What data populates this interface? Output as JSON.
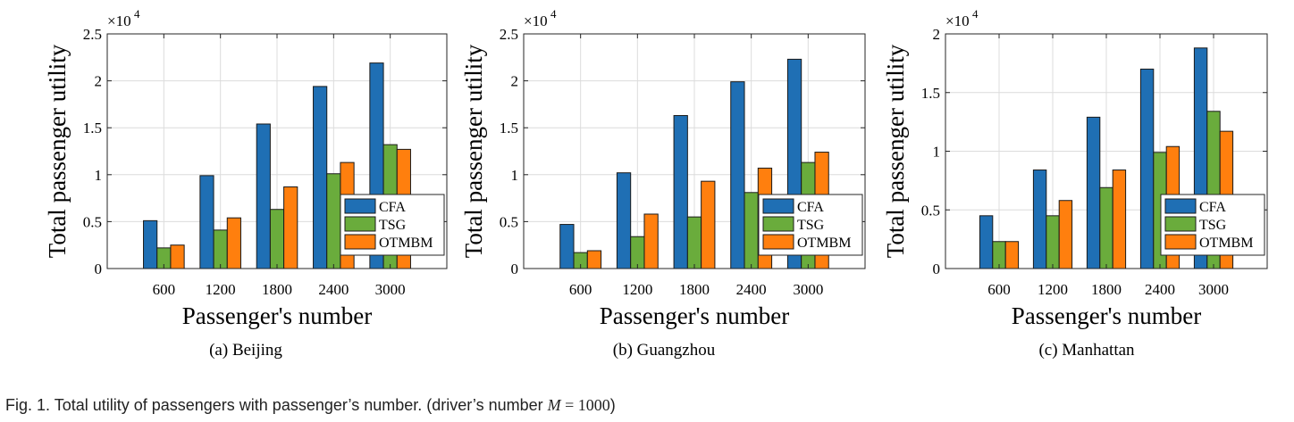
{
  "chart_data": [
    {
      "type": "bar",
      "caption": "(a)  Beijing",
      "categories": [
        "600",
        "1200",
        "1800",
        "2400",
        "3000"
      ],
      "series": [
        {
          "name": "CFA",
          "color": "#1f6fb4",
          "values": [
            5100,
            9900,
            15400,
            19400,
            21900
          ]
        },
        {
          "name": "TSG",
          "color": "#6aac3c",
          "values": [
            2200,
            4100,
            6300,
            10100,
            13200
          ]
        },
        {
          "name": "OTMBM",
          "color": "#ff7f0e",
          "values": [
            2500,
            5400,
            8700,
            11300,
            12700
          ]
        }
      ],
      "ylim": [
        0,
        25000
      ],
      "yticks": [
        "0",
        "0.5",
        "1",
        "1.5",
        "2",
        "2.5"
      ],
      "yticks_values": [
        0,
        5000,
        10000,
        15000,
        20000,
        25000
      ],
      "exponent_label": "×10",
      "exponent_power": "4",
      "xlabel": "Passenger's number",
      "ylabel": "Total passenger utility",
      "grid": true,
      "legend": "lower-right"
    },
    {
      "type": "bar",
      "caption": "(b)  Guangzhou",
      "categories": [
        "600",
        "1200",
        "1800",
        "2400",
        "3000"
      ],
      "series": [
        {
          "name": "CFA",
          "color": "#1f6fb4",
          "values": [
            4700,
            10200,
            16300,
            19900,
            22300
          ]
        },
        {
          "name": "TSG",
          "color": "#6aac3c",
          "values": [
            1700,
            3400,
            5500,
            8100,
            11300
          ]
        },
        {
          "name": "OTMBM",
          "color": "#ff7f0e",
          "values": [
            1900,
            5800,
            9300,
            10700,
            12400
          ]
        }
      ],
      "ylim": [
        0,
        25000
      ],
      "yticks": [
        "0",
        "0.5",
        "1",
        "1.5",
        "2",
        "2.5"
      ],
      "yticks_values": [
        0,
        5000,
        10000,
        15000,
        20000,
        25000
      ],
      "exponent_label": "×10",
      "exponent_power": "4",
      "xlabel": "Passenger's number",
      "ylabel": "Total passenger utility",
      "grid": true,
      "legend": "lower-right"
    },
    {
      "type": "bar",
      "caption": "(c)  Manhattan",
      "categories": [
        "600",
        "1200",
        "1800",
        "2400",
        "3000"
      ],
      "series": [
        {
          "name": "CFA",
          "color": "#1f6fb4",
          "values": [
            4500,
            8400,
            12900,
            17000,
            18800
          ]
        },
        {
          "name": "TSG",
          "color": "#6aac3c",
          "values": [
            2300,
            4500,
            6900,
            9900,
            13400
          ]
        },
        {
          "name": "OTMBM",
          "color": "#ff7f0e",
          "values": [
            2300,
            5800,
            8400,
            10400,
            11700
          ]
        }
      ],
      "ylim": [
        0,
        20000
      ],
      "yticks": [
        "0",
        "0.5",
        "1",
        "1.5",
        "2"
      ],
      "yticks_values": [
        0,
        5000,
        10000,
        15000,
        20000
      ],
      "exponent_label": "×10",
      "exponent_power": "4",
      "xlabel": "Passenger's number",
      "ylabel": "Total passenger utility",
      "grid": true,
      "legend": "lower-right"
    }
  ],
  "figure_caption": {
    "prefix": "Fig. 1. Total utility of passengers with passenger’s number. (driver’s number ",
    "math_var": "M",
    "math_rest": " = 1000",
    "suffix": ")"
  }
}
